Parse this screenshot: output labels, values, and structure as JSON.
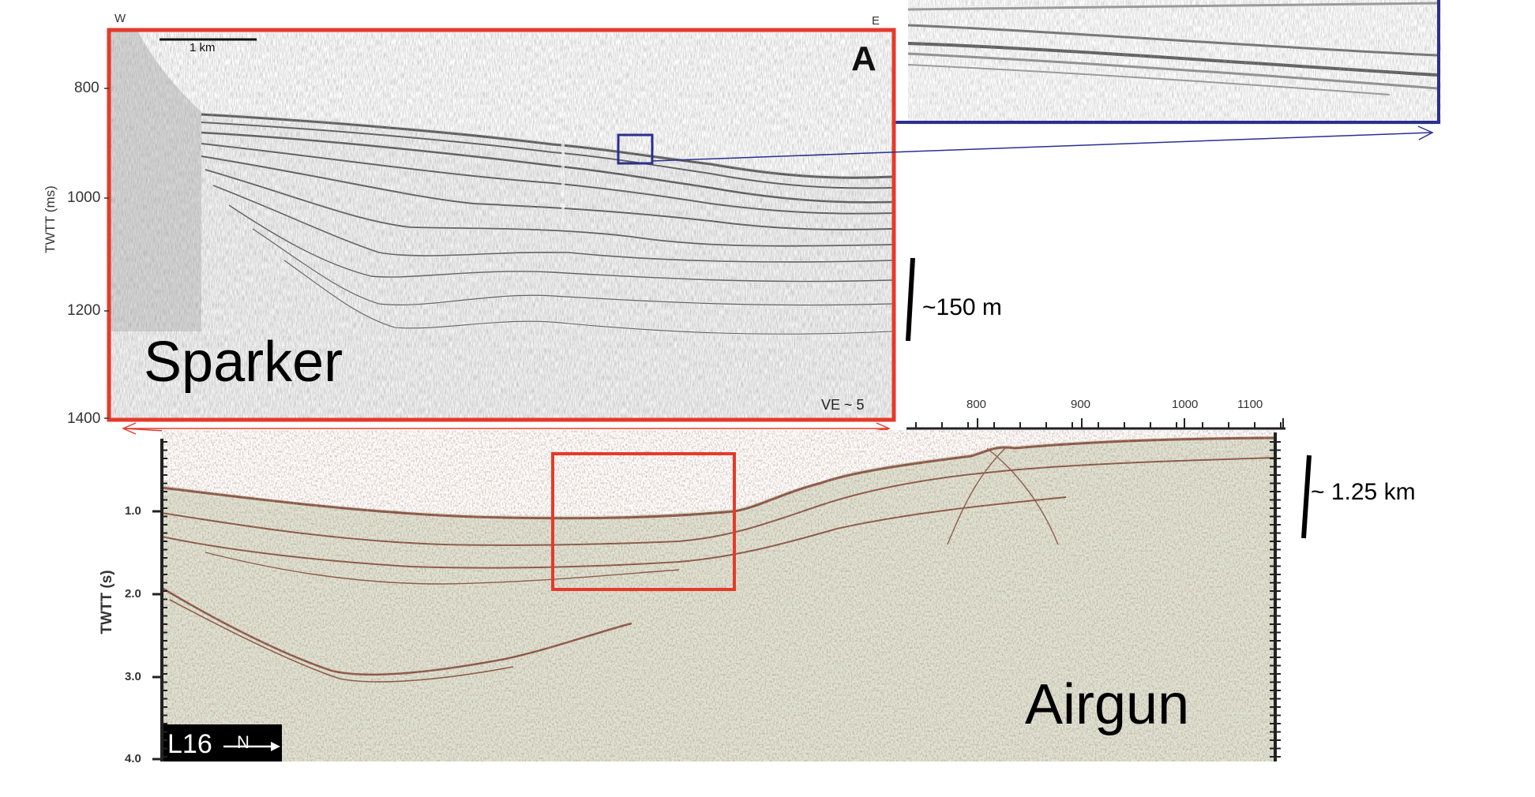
{
  "sparker": {
    "west": "W",
    "east": "E",
    "scale_bar": "1 km",
    "panel_letter": "A",
    "label": "Sparker",
    "ve": "VE ~ 5",
    "y_axis_label": "TWTT (ms)",
    "y_ticks": [
      "800",
      "1000",
      "1200",
      "1400"
    ],
    "vertical_scale": "~150 m"
  },
  "airgun": {
    "label": "Airgun",
    "line_id": "L16",
    "north": "N",
    "y_axis_label": "TWTT (s)",
    "y_ticks": [
      "1.0",
      "2.0",
      "3.0",
      "4.0"
    ],
    "top_ticks": [
      "800",
      "900",
      "1000",
      "1100"
    ],
    "vertical_scale": "~ 1.25 km"
  },
  "colors": {
    "sparker_frame": "#e53a2a",
    "zoom_frame": "#2b2f8f",
    "airgun_bg": "#dfe4d4",
    "airgun_reflector": "#7a3a2a"
  }
}
